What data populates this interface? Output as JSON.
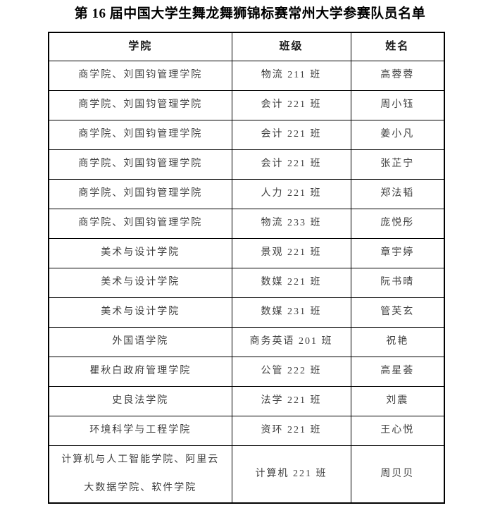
{
  "page": {
    "title": "第 16 届中国大学生舞龙舞狮锦标赛常州大学参赛队员名单"
  },
  "table": {
    "headers": [
      "学院",
      "班级",
      "姓名"
    ],
    "rows": [
      {
        "college": "商学院、刘国钧管理学院",
        "class": "物流 211 班",
        "name": "高蓉蓉"
      },
      {
        "college": "商学院、刘国钧管理学院",
        "class": "会计 221 班",
        "name": "周小钰"
      },
      {
        "college": "商学院、刘国钧管理学院",
        "class": "会计 221 班",
        "name": "姜小凡"
      },
      {
        "college": "商学院、刘国钧管理学院",
        "class": "会计 221 班",
        "name": "张芷宁"
      },
      {
        "college": "商学院、刘国钧管理学院",
        "class": "人力 221 班",
        "name": "郑法韬"
      },
      {
        "college": "商学院、刘国钧管理学院",
        "class": "物流 233 班",
        "name": "庞悦彤"
      },
      {
        "college": "美术与设计学院",
        "class": "景观 221 班",
        "name": "章宇婷"
      },
      {
        "college": "美术与设计学院",
        "class": "数媒 221 班",
        "name": "阮书晴"
      },
      {
        "college": "美术与设计学院",
        "class": "数媒 231 班",
        "name": "管芙玄"
      },
      {
        "college": "外国语学院",
        "class": "商务英语 201 班",
        "name": "祝艳"
      },
      {
        "college": "瞿秋白政府管理学院",
        "class": "公管 222 班",
        "name": "高星荟"
      },
      {
        "college": "史良法学院",
        "class": "法学 221 班",
        "name": "刘震"
      },
      {
        "college": "环境科学与工程学院",
        "class": "资环 221 班",
        "name": "王心悦"
      },
      {
        "college": "计算机与人工智能学院、阿里云大数据学院、软件学院",
        "class": "计算机 221 班",
        "name": "周贝贝"
      }
    ]
  },
  "colors": {
    "page_background": "#ffffff",
    "border": "#000000",
    "title_text": "#000000",
    "header_text": "#1a1a1a",
    "body_text": "#3f3f3f"
  }
}
